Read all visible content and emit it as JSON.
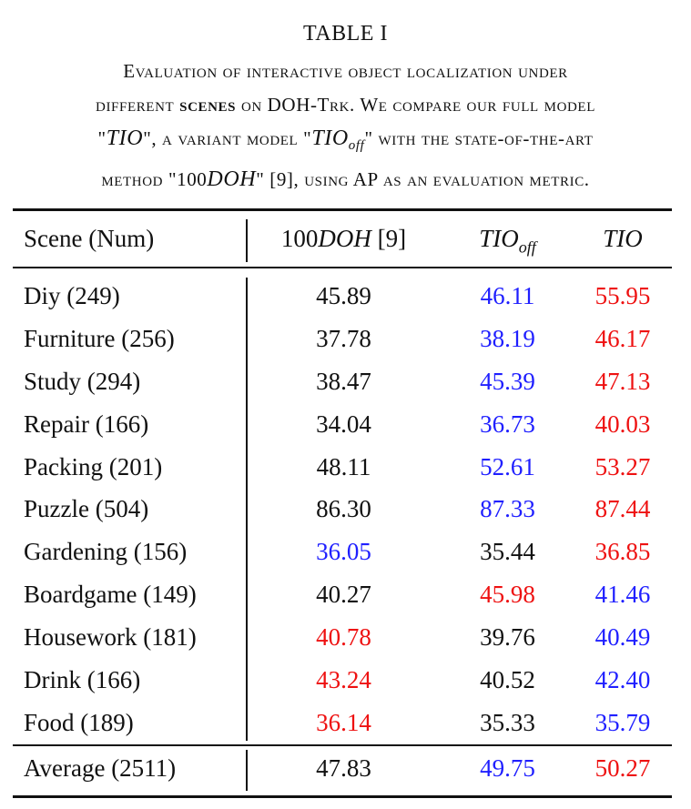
{
  "table_label": "TABLE I",
  "caption": {
    "line1": "Evaluation of interactive object localization under",
    "line2_a": "different ",
    "line2_bold": "scenes",
    "line2_b": " on DOH-Trk. We compare our full model",
    "line3_q1": "\"",
    "line3_tio": "TIO",
    "line3_a": "\", a variant model \"",
    "line3_tio2": "TIO",
    "line3_sub": "off",
    "line3_b": "\" with the state-of-the-art",
    "line4_a": "method \"100",
    "line4_doh": "DOH",
    "line4_b": "\" [9], using AP as an evaluation metric."
  },
  "colors": {
    "black": "#111111",
    "blue": "#1f1fff",
    "red": "#ee1111"
  },
  "header": {
    "scene": "Scene (Num)",
    "doh_prefix": "100",
    "doh_italic": "DOH",
    "doh_ref": " [9]",
    "tio_off_base": "TIO",
    "tio_off_sub": "off",
    "tio": "TIO"
  },
  "rows": [
    {
      "scene": "Diy (249)",
      "doh": "45.89",
      "tio_off": "46.11",
      "tio": "55.95",
      "c_doh": "black",
      "c_off": "blue",
      "c_tio": "red"
    },
    {
      "scene": "Furniture (256)",
      "doh": "37.78",
      "tio_off": "38.19",
      "tio": "46.17",
      "c_doh": "black",
      "c_off": "blue",
      "c_tio": "red"
    },
    {
      "scene": "Study (294)",
      "doh": "38.47",
      "tio_off": "45.39",
      "tio": "47.13",
      "c_doh": "black",
      "c_off": "blue",
      "c_tio": "red"
    },
    {
      "scene": "Repair (166)",
      "doh": "34.04",
      "tio_off": "36.73",
      "tio": "40.03",
      "c_doh": "black",
      "c_off": "blue",
      "c_tio": "red"
    },
    {
      "scene": "Packing (201)",
      "doh": "48.11",
      "tio_off": "52.61",
      "tio": "53.27",
      "c_doh": "black",
      "c_off": "blue",
      "c_tio": "red"
    },
    {
      "scene": "Puzzle (504)",
      "doh": "86.30",
      "tio_off": "87.33",
      "tio": "87.44",
      "c_doh": "black",
      "c_off": "blue",
      "c_tio": "red"
    },
    {
      "scene": "Gardening (156)",
      "doh": "36.05",
      "tio_off": "35.44",
      "tio": "36.85",
      "c_doh": "blue",
      "c_off": "black",
      "c_tio": "red"
    },
    {
      "scene": "Boardgame (149)",
      "doh": "40.27",
      "tio_off": "45.98",
      "tio": "41.46",
      "c_doh": "black",
      "c_off": "red",
      "c_tio": "blue"
    },
    {
      "scene": "Housework (181)",
      "doh": "40.78",
      "tio_off": "39.76",
      "tio": "40.49",
      "c_doh": "red",
      "c_off": "black",
      "c_tio": "blue"
    },
    {
      "scene": "Drink (166)",
      "doh": "43.24",
      "tio_off": "40.52",
      "tio": "42.40",
      "c_doh": "red",
      "c_off": "black",
      "c_tio": "blue"
    },
    {
      "scene": "Food (189)",
      "doh": "36.14",
      "tio_off": "35.33",
      "tio": "35.79",
      "c_doh": "red",
      "c_off": "black",
      "c_tio": "blue"
    }
  ],
  "average": {
    "scene": "Average (2511)",
    "doh": "47.83",
    "tio_off": "49.75",
    "tio": "50.27",
    "c_doh": "black",
    "c_off": "blue",
    "c_tio": "red"
  }
}
